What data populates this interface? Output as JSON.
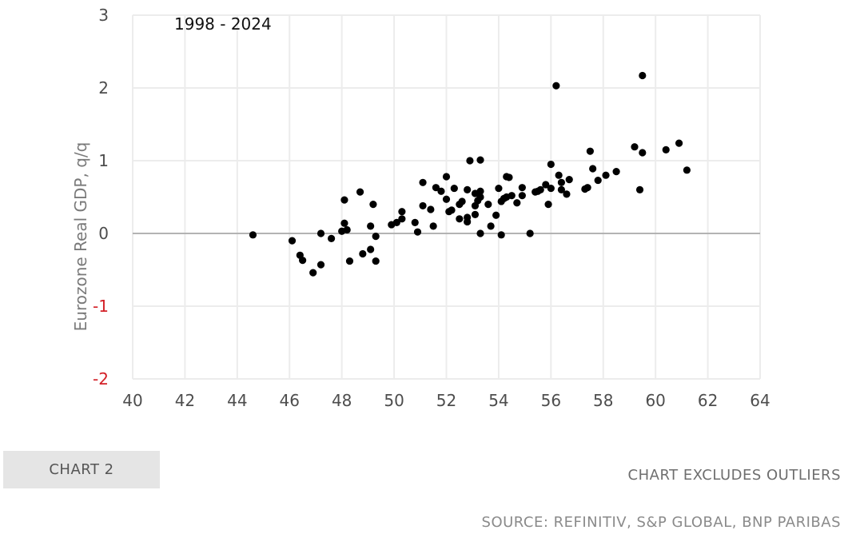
{
  "chart_data": {
    "type": "scatter",
    "annotation": "1998 - 2024",
    "ylabel": "Eurozone Real GDP, q/q",
    "xlabel": "",
    "xlim": [
      40,
      64
    ],
    "ylim": [
      -2,
      3
    ],
    "xticks": [
      "40",
      "42",
      "44",
      "46",
      "48",
      "50",
      "52",
      "54",
      "56",
      "58",
      "60",
      "62",
      "64"
    ],
    "yticks": [
      "3",
      "2",
      "1",
      "0",
      "-1",
      "-2"
    ],
    "grid": true,
    "point_color": "#000000",
    "negative_tick_color": "#d31f26",
    "points": [
      [
        44.6,
        -0.02
      ],
      [
        46.1,
        -0.1
      ],
      [
        46.4,
        -0.3
      ],
      [
        46.5,
        -0.37
      ],
      [
        46.9,
        -0.54
      ],
      [
        47.2,
        0.0
      ],
      [
        47.2,
        -0.43
      ],
      [
        47.6,
        -0.07
      ],
      [
        48.0,
        0.03
      ],
      [
        48.1,
        0.14
      ],
      [
        48.1,
        0.46
      ],
      [
        48.2,
        0.05
      ],
      [
        48.3,
        -0.38
      ],
      [
        48.7,
        0.57
      ],
      [
        48.8,
        -0.28
      ],
      [
        49.1,
        0.1
      ],
      [
        49.1,
        -0.22
      ],
      [
        49.2,
        0.4
      ],
      [
        49.3,
        -0.04
      ],
      [
        49.3,
        -0.38
      ],
      [
        49.9,
        0.12
      ],
      [
        50.1,
        0.15
      ],
      [
        50.3,
        0.2
      ],
      [
        50.3,
        0.3
      ],
      [
        50.8,
        0.15
      ],
      [
        50.9,
        0.02
      ],
      [
        51.1,
        0.38
      ],
      [
        51.1,
        0.7
      ],
      [
        51.4,
        0.33
      ],
      [
        51.5,
        0.1
      ],
      [
        51.6,
        0.63
      ],
      [
        51.8,
        0.58
      ],
      [
        52.0,
        0.78
      ],
      [
        52.0,
        0.47
      ],
      [
        52.1,
        0.3
      ],
      [
        52.2,
        0.32
      ],
      [
        52.3,
        0.62
      ],
      [
        52.5,
        0.2
      ],
      [
        52.5,
        0.4
      ],
      [
        52.6,
        0.44
      ],
      [
        52.8,
        0.6
      ],
      [
        52.8,
        0.22
      ],
      [
        52.8,
        0.16
      ],
      [
        52.9,
        1.0
      ],
      [
        53.1,
        0.55
      ],
      [
        53.1,
        0.38
      ],
      [
        53.1,
        0.26
      ],
      [
        53.2,
        0.45
      ],
      [
        53.3,
        1.01
      ],
      [
        53.3,
        0.58
      ],
      [
        53.3,
        0.5
      ],
      [
        53.3,
        0.0
      ],
      [
        53.6,
        0.4
      ],
      [
        53.7,
        0.1
      ],
      [
        53.9,
        0.25
      ],
      [
        54.0,
        0.62
      ],
      [
        54.1,
        0.44
      ],
      [
        54.1,
        -0.02
      ],
      [
        54.2,
        0.48
      ],
      [
        54.3,
        0.78
      ],
      [
        54.3,
        0.5
      ],
      [
        54.4,
        0.77
      ],
      [
        54.5,
        0.52
      ],
      [
        54.7,
        0.42
      ],
      [
        54.9,
        0.63
      ],
      [
        54.9,
        0.52
      ],
      [
        55.2,
        0.0
      ],
      [
        55.4,
        0.57
      ],
      [
        55.5,
        0.58
      ],
      [
        55.6,
        0.6
      ],
      [
        55.8,
        0.67
      ],
      [
        55.9,
        0.4
      ],
      [
        56.0,
        0.95
      ],
      [
        56.0,
        0.62
      ],
      [
        56.2,
        2.03
      ],
      [
        56.3,
        0.8
      ],
      [
        56.4,
        0.7
      ],
      [
        56.4,
        0.6
      ],
      [
        56.6,
        0.54
      ],
      [
        56.7,
        0.74
      ],
      [
        57.3,
        0.61
      ],
      [
        57.4,
        0.63
      ],
      [
        57.5,
        1.13
      ],
      [
        57.6,
        0.89
      ],
      [
        57.8,
        0.73
      ],
      [
        58.1,
        0.8
      ],
      [
        58.5,
        0.85
      ],
      [
        59.2,
        1.19
      ],
      [
        59.4,
        0.6
      ],
      [
        59.5,
        1.11
      ],
      [
        59.5,
        2.17
      ],
      [
        60.4,
        1.15
      ],
      [
        60.9,
        1.24
      ],
      [
        61.2,
        0.87
      ]
    ]
  },
  "footer": {
    "chart_tag": "CHART 2",
    "exclusion_note": "CHART EXCLUDES OUTLIERS",
    "source": "SOURCE: REFINITIV, S&P GLOBAL, BNP PARIBAS"
  }
}
